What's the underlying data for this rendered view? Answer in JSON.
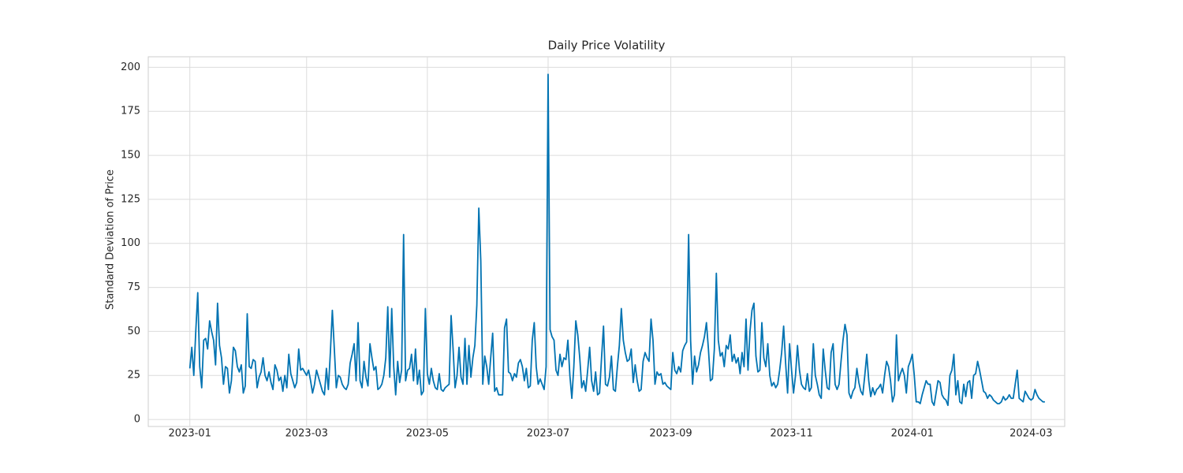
{
  "chart_data": {
    "type": "line",
    "title": "Daily Price Volatility",
    "y_label": "Standard Deviation of Price",
    "grid": true,
    "xlim": [
      "2022-12-11",
      "2024-03-18"
    ],
    "ylim": [
      -4,
      206
    ],
    "xticks": [
      {
        "value": "2023-01-01",
        "label": "2023-01"
      },
      {
        "value": "2023-03-01",
        "label": "2023-03"
      },
      {
        "value": "2023-05-01",
        "label": "2023-05"
      },
      {
        "value": "2023-07-01",
        "label": "2023-07"
      },
      {
        "value": "2023-09-01",
        "label": "2023-09"
      },
      {
        "value": "2023-11-01",
        "label": "2023-11"
      },
      {
        "value": "2024-01-01",
        "label": "2024-01"
      },
      {
        "value": "2024-03-01",
        "label": "2024-03"
      }
    ],
    "yticks": [
      0,
      25,
      50,
      75,
      100,
      125,
      150,
      175,
      200
    ],
    "x": [
      "2023-01-01",
      "2023-01-02",
      "2023-01-03",
      "2023-01-04",
      "2023-01-05",
      "2023-01-06",
      "2023-01-07",
      "2023-01-08",
      "2023-01-09",
      "2023-01-10",
      "2023-01-11",
      "2023-01-12",
      "2023-01-13",
      "2023-01-14",
      "2023-01-15",
      "2023-01-16",
      "2023-01-17",
      "2023-01-18",
      "2023-01-19",
      "2023-01-20",
      "2023-01-21",
      "2023-01-22",
      "2023-01-23",
      "2023-01-24",
      "2023-01-25",
      "2023-01-26",
      "2023-01-27",
      "2023-01-28",
      "2023-01-29",
      "2023-01-30",
      "2023-01-31",
      "2023-02-01",
      "2023-02-02",
      "2023-02-03",
      "2023-02-04",
      "2023-02-05",
      "2023-02-06",
      "2023-02-07",
      "2023-02-08",
      "2023-02-09",
      "2023-02-10",
      "2023-02-11",
      "2023-02-12",
      "2023-02-13",
      "2023-02-14",
      "2023-02-15",
      "2023-02-16",
      "2023-02-17",
      "2023-02-18",
      "2023-02-19",
      "2023-02-20",
      "2023-02-21",
      "2023-02-22",
      "2023-02-23",
      "2023-02-24",
      "2023-02-25",
      "2023-02-26",
      "2023-02-27",
      "2023-02-28",
      "2023-03-01",
      "2023-03-02",
      "2023-03-03",
      "2023-03-04",
      "2023-03-05",
      "2023-03-06",
      "2023-03-07",
      "2023-03-08",
      "2023-03-09",
      "2023-03-10",
      "2023-03-11",
      "2023-03-12",
      "2023-03-13",
      "2023-03-14",
      "2023-03-15",
      "2023-03-16",
      "2023-03-17",
      "2023-03-18",
      "2023-03-19",
      "2023-03-20",
      "2023-03-21",
      "2023-03-22",
      "2023-03-23",
      "2023-03-24",
      "2023-03-25",
      "2023-03-26",
      "2023-03-27",
      "2023-03-28",
      "2023-03-29",
      "2023-03-30",
      "2023-03-31",
      "2023-04-01",
      "2023-04-02",
      "2023-04-03",
      "2023-04-04",
      "2023-04-05",
      "2023-04-06",
      "2023-04-07",
      "2023-04-08",
      "2023-04-09",
      "2023-04-10",
      "2023-04-11",
      "2023-04-12",
      "2023-04-13",
      "2023-04-14",
      "2023-04-15",
      "2023-04-16",
      "2023-04-17",
      "2023-04-18",
      "2023-04-19",
      "2023-04-20",
      "2023-04-21",
      "2023-04-22",
      "2023-04-23",
      "2023-04-24",
      "2023-04-25",
      "2023-04-26",
      "2023-04-27",
      "2023-04-28",
      "2023-04-29",
      "2023-04-30",
      "2023-05-01",
      "2023-05-02",
      "2023-05-03",
      "2023-05-04",
      "2023-05-05",
      "2023-05-06",
      "2023-05-07",
      "2023-05-08",
      "2023-05-09",
      "2023-05-10",
      "2023-05-11",
      "2023-05-12",
      "2023-05-13",
      "2023-05-14",
      "2023-05-15",
      "2023-05-16",
      "2023-05-17",
      "2023-05-18",
      "2023-05-19",
      "2023-05-20",
      "2023-05-21",
      "2023-05-22",
      "2023-05-23",
      "2023-05-24",
      "2023-05-25",
      "2023-05-26",
      "2023-05-27",
      "2023-05-28",
      "2023-05-29",
      "2023-05-30",
      "2023-05-31",
      "2023-06-01",
      "2023-06-02",
      "2023-06-03",
      "2023-06-04",
      "2023-06-05",
      "2023-06-06",
      "2023-06-07",
      "2023-06-08",
      "2023-06-09",
      "2023-06-10",
      "2023-06-11",
      "2023-06-12",
      "2023-06-13",
      "2023-06-14",
      "2023-06-15",
      "2023-06-16",
      "2023-06-17",
      "2023-06-18",
      "2023-06-19",
      "2023-06-20",
      "2023-06-21",
      "2023-06-22",
      "2023-06-23",
      "2023-06-24",
      "2023-06-25",
      "2023-06-26",
      "2023-06-27",
      "2023-06-28",
      "2023-06-29",
      "2023-06-30",
      "2023-07-01",
      "2023-07-02",
      "2023-07-03",
      "2023-07-04",
      "2023-07-05",
      "2023-07-06",
      "2023-07-07",
      "2023-07-08",
      "2023-07-09",
      "2023-07-10",
      "2023-07-11",
      "2023-07-12",
      "2023-07-13",
      "2023-07-14",
      "2023-07-15",
      "2023-07-16",
      "2023-07-17",
      "2023-07-18",
      "2023-07-19",
      "2023-07-20",
      "2023-07-21",
      "2023-07-22",
      "2023-07-23",
      "2023-07-24",
      "2023-07-25",
      "2023-07-26",
      "2023-07-27",
      "2023-07-28",
      "2023-07-29",
      "2023-07-30",
      "2023-07-31",
      "2023-08-01",
      "2023-08-02",
      "2023-08-03",
      "2023-08-04",
      "2023-08-05",
      "2023-08-06",
      "2023-08-07",
      "2023-08-08",
      "2023-08-09",
      "2023-08-10",
      "2023-08-11",
      "2023-08-12",
      "2023-08-13",
      "2023-08-14",
      "2023-08-15",
      "2023-08-16",
      "2023-08-17",
      "2023-08-18",
      "2023-08-19",
      "2023-08-20",
      "2023-08-21",
      "2023-08-22",
      "2023-08-23",
      "2023-08-24",
      "2023-08-25",
      "2023-08-26",
      "2023-08-27",
      "2023-08-28",
      "2023-08-29",
      "2023-08-30",
      "2023-08-31",
      "2023-09-01",
      "2023-09-02",
      "2023-09-03",
      "2023-09-04",
      "2023-09-05",
      "2023-09-06",
      "2023-09-07",
      "2023-09-08",
      "2023-09-09",
      "2023-09-10",
      "2023-09-11",
      "2023-09-12",
      "2023-09-13",
      "2023-09-14",
      "2023-09-15",
      "2023-09-16",
      "2023-09-17",
      "2023-09-18",
      "2023-09-19",
      "2023-09-20",
      "2023-09-21",
      "2023-09-22",
      "2023-09-23",
      "2023-09-24",
      "2023-09-25",
      "2023-09-26",
      "2023-09-27",
      "2023-09-28",
      "2023-09-29",
      "2023-09-30",
      "2023-10-01",
      "2023-10-02",
      "2023-10-03",
      "2023-10-04",
      "2023-10-05",
      "2023-10-06",
      "2023-10-07",
      "2023-10-08",
      "2023-10-09",
      "2023-10-10",
      "2023-10-11",
      "2023-10-12",
      "2023-10-13",
      "2023-10-14",
      "2023-10-15",
      "2023-10-16",
      "2023-10-17",
      "2023-10-18",
      "2023-10-19",
      "2023-10-20",
      "2023-10-21",
      "2023-10-22",
      "2023-10-23",
      "2023-10-24",
      "2023-10-25",
      "2023-10-26",
      "2023-10-27",
      "2023-10-28",
      "2023-10-29",
      "2023-10-30",
      "2023-10-31",
      "2023-11-01",
      "2023-11-02",
      "2023-11-03",
      "2023-11-04",
      "2023-11-05",
      "2023-11-06",
      "2023-11-07",
      "2023-11-08",
      "2023-11-09",
      "2023-11-10",
      "2023-11-11",
      "2023-11-12",
      "2023-11-13",
      "2023-11-14",
      "2023-11-15",
      "2023-11-16",
      "2023-11-17",
      "2023-11-18",
      "2023-11-19",
      "2023-11-20",
      "2023-11-21",
      "2023-11-22",
      "2023-11-23",
      "2023-11-24",
      "2023-11-25",
      "2023-11-26",
      "2023-11-27",
      "2023-11-28",
      "2023-11-29",
      "2023-11-30",
      "2023-12-01",
      "2023-12-02",
      "2023-12-03",
      "2023-12-04",
      "2023-12-05",
      "2023-12-06",
      "2023-12-07",
      "2023-12-08",
      "2023-12-09",
      "2023-12-10",
      "2023-12-11",
      "2023-12-12",
      "2023-12-13",
      "2023-12-14",
      "2023-12-15",
      "2023-12-16",
      "2023-12-17",
      "2023-12-18",
      "2023-12-19",
      "2023-12-20",
      "2023-12-21",
      "2023-12-22",
      "2023-12-23",
      "2023-12-24",
      "2023-12-25",
      "2023-12-26",
      "2023-12-27",
      "2023-12-28",
      "2023-12-29",
      "2023-12-30",
      "2023-12-31",
      "2024-01-01",
      "2024-01-02",
      "2024-01-03",
      "2024-01-04",
      "2024-01-05",
      "2024-01-06",
      "2024-01-07",
      "2024-01-08",
      "2024-01-09",
      "2024-01-10",
      "2024-01-11",
      "2024-01-12",
      "2024-01-13",
      "2024-01-14",
      "2024-01-15",
      "2024-01-16",
      "2024-01-17",
      "2024-01-18",
      "2024-01-19",
      "2024-01-20",
      "2024-01-21",
      "2024-01-22",
      "2024-01-23",
      "2024-01-24",
      "2024-01-25",
      "2024-01-26",
      "2024-01-27",
      "2024-01-28",
      "2024-01-29",
      "2024-01-30",
      "2024-01-31",
      "2024-02-01",
      "2024-02-02",
      "2024-02-03",
      "2024-02-04",
      "2024-02-05",
      "2024-02-06",
      "2024-02-07",
      "2024-02-08",
      "2024-02-09",
      "2024-02-10",
      "2024-02-11",
      "2024-02-12",
      "2024-02-13",
      "2024-02-14",
      "2024-02-15",
      "2024-02-16",
      "2024-02-17",
      "2024-02-18",
      "2024-02-19",
      "2024-02-20",
      "2024-02-21",
      "2024-02-22",
      "2024-02-23",
      "2024-02-24",
      "2024-02-25",
      "2024-02-26",
      "2024-02-27",
      "2024-02-28",
      "2024-02-29",
      "2024-03-01",
      "2024-03-02",
      "2024-03-03",
      "2024-03-04",
      "2024-03-05",
      "2024-03-06",
      "2024-03-07",
      "2024-03-08"
    ],
    "series": [
      {
        "color": "#0173b2",
        "values": [
          29,
          41,
          25,
          50,
          72,
          30,
          18,
          45,
          46,
          40,
          56,
          50,
          45,
          31,
          66,
          42,
          35,
          20,
          30,
          29,
          15,
          22,
          41,
          39,
          30,
          27,
          31,
          15,
          19,
          60,
          30,
          29,
          34,
          33,
          18,
          24,
          27,
          35,
          25,
          22,
          27,
          21,
          17,
          31,
          28,
          22,
          24,
          16,
          25,
          18,
          37,
          26,
          22,
          18,
          21,
          40,
          28,
          29,
          27,
          25,
          28,
          22,
          15,
          20,
          28,
          24,
          20,
          16,
          14,
          29,
          17,
          38,
          62,
          40,
          18,
          25,
          24,
          20,
          18,
          17,
          20,
          32,
          37,
          43,
          22,
          55,
          22,
          18,
          33,
          24,
          19,
          43,
          35,
          28,
          30,
          17,
          18,
          20,
          25,
          35,
          64,
          24,
          63,
          30,
          14,
          33,
          21,
          28,
          105,
          22,
          28,
          29,
          37,
          22,
          40,
          20,
          28,
          14,
          16,
          63,
          26,
          20,
          29,
          22,
          18,
          17,
          26,
          17,
          16,
          18,
          19,
          20,
          59,
          40,
          18,
          25,
          41,
          24,
          20,
          46,
          20,
          42,
          24,
          35,
          42,
          65,
          120,
          90,
          20,
          36,
          30,
          20,
          35,
          49,
          16,
          18,
          14,
          14,
          14,
          52,
          57,
          27,
          26,
          22,
          26,
          24,
          32,
          34,
          30,
          22,
          29,
          18,
          19,
          45,
          55,
          30,
          20,
          23,
          20,
          17,
          30,
          196,
          51,
          47,
          45,
          28,
          25,
          37,
          30,
          35,
          34,
          45,
          25,
          12,
          30,
          56,
          48,
          35,
          18,
          22,
          16,
          28,
          41,
          22,
          16,
          27,
          14,
          15,
          35,
          53,
          20,
          19,
          24,
          36,
          17,
          16,
          30,
          42,
          63,
          45,
          38,
          33,
          34,
          40,
          21,
          31,
          22,
          16,
          17,
          33,
          38,
          35,
          33,
          57,
          45,
          20,
          27,
          25,
          26,
          20,
          21,
          19,
          18,
          17,
          38,
          28,
          26,
          30,
          27,
          39,
          42,
          44,
          105,
          45,
          20,
          36,
          27,
          31,
          38,
          42,
          47,
          55,
          40,
          22,
          23,
          40,
          83,
          45,
          36,
          38,
          30,
          42,
          40,
          48,
          33,
          37,
          32,
          35,
          26,
          38,
          30,
          57,
          28,
          50,
          62,
          66,
          36,
          27,
          28,
          55,
          35,
          30,
          43,
          25,
          19,
          21,
          18,
          20,
          28,
          38,
          53,
          32,
          15,
          43,
          28,
          15,
          25,
          42,
          28,
          20,
          18,
          17,
          26,
          16,
          18,
          43,
          25,
          20,
          14,
          12,
          40,
          28,
          18,
          17,
          38,
          43,
          20,
          17,
          20,
          33,
          45,
          54,
          48,
          15,
          12,
          16,
          18,
          29,
          21,
          16,
          14,
          25,
          37,
          22,
          13,
          18,
          14,
          17,
          18,
          20,
          15,
          25,
          33,
          30,
          22,
          10,
          14,
          48,
          22,
          26,
          29,
          25,
          15,
          30,
          33,
          37,
          25,
          10,
          10,
          9,
          14,
          18,
          22,
          20,
          20,
          10,
          8,
          15,
          22,
          21,
          14,
          12,
          11,
          8,
          25,
          28,
          37,
          14,
          22,
          10,
          9,
          20,
          13,
          21,
          22,
          12,
          25,
          26,
          33,
          28,
          22,
          16,
          15,
          12,
          14,
          13,
          11,
          10,
          9,
          9,
          10,
          13,
          11,
          12,
          14,
          12,
          12,
          20,
          28,
          12,
          11,
          10,
          16,
          14,
          12,
          11,
          12,
          17,
          14,
          12,
          11,
          10,
          10
        ]
      }
    ]
  }
}
